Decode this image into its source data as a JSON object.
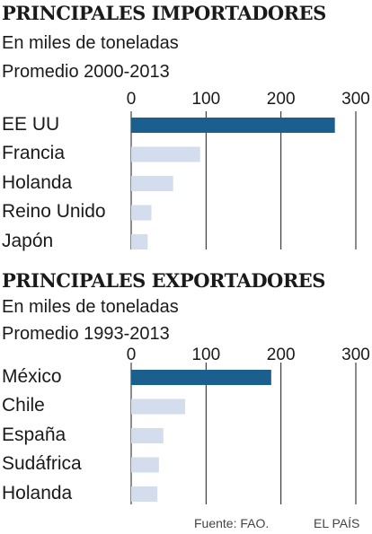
{
  "colors": {
    "highlight": "#1b5f8e",
    "bar": "#d3dded",
    "grid": "#1a1a1a"
  },
  "chart_data": [
    {
      "type": "bar",
      "orientation": "horizontal",
      "title": "PRINCIPALES IMPORTADORES",
      "subtitle": "En miles de toneladas",
      "period": "Promedio 2000-2013",
      "xlim": [
        0,
        300
      ],
      "ticks": [
        0,
        100,
        200,
        300
      ],
      "categories": [
        "EE UU",
        "Francia",
        "Holanda",
        "Reino Unido",
        "Japón"
      ],
      "values": [
        272,
        92,
        56,
        27,
        22
      ],
      "highlight_index": 0,
      "grid": true
    },
    {
      "type": "bar",
      "orientation": "horizontal",
      "title": "PRINCIPALES EXPORTADORES",
      "subtitle": "En miles de toneladas",
      "period": "Promedio 1993-2013",
      "xlim": [
        0,
        300
      ],
      "ticks": [
        0,
        100,
        200,
        300
      ],
      "categories": [
        "México",
        "Chile",
        "España",
        "Sudáfrica",
        "Holanda"
      ],
      "values": [
        187,
        72,
        43,
        37,
        35
      ],
      "highlight_index": 0,
      "grid": true
    }
  ],
  "footer": {
    "source": "Fuente: FAO.",
    "brand": "EL PAÍS"
  }
}
